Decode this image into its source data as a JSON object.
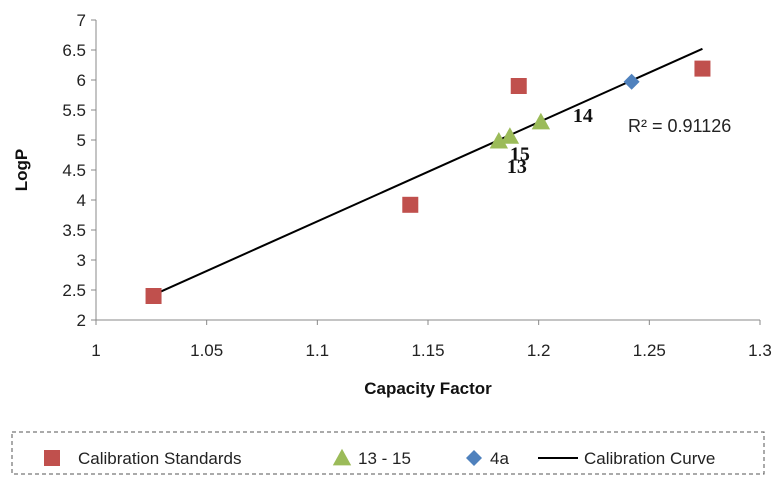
{
  "chart_data": {
    "type": "scatter",
    "title": "",
    "xlabel": "Capacity Factor",
    "ylabel": "LogP",
    "xlim": [
      1,
      1.3
    ],
    "ylim": [
      2,
      7
    ],
    "x_ticks": [
      "1",
      "1.05",
      "1.1",
      "1.15",
      "1.2",
      "1.25",
      "1.3"
    ],
    "y_ticks": [
      "2",
      "2.5",
      "3",
      "3.5",
      "4",
      "4.5",
      "5",
      "5.5",
      "6",
      "6.5",
      "7"
    ],
    "grid": false,
    "legend_position": "bottom",
    "series": [
      {
        "name": "Calibration Standards",
        "marker": "square",
        "color": "#c0504d",
        "points": [
          {
            "x": 1.026,
            "y": 2.4
          },
          {
            "x": 1.142,
            "y": 3.92
          },
          {
            "x": 1.191,
            "y": 5.9
          },
          {
            "x": 1.274,
            "y": 6.19
          }
        ]
      },
      {
        "name": "13 - 15",
        "marker": "triangle",
        "color": "#9bbb59",
        "points": [
          {
            "x": 1.182,
            "y": 4.98,
            "label": "13"
          },
          {
            "x": 1.187,
            "y": 5.06,
            "label": "15"
          },
          {
            "x": 1.201,
            "y": 5.3,
            "label": "14"
          }
        ]
      },
      {
        "name": "4a",
        "marker": "diamond",
        "color": "#4f81bd",
        "points": [
          {
            "x": 1.242,
            "y": 5.97
          }
        ]
      },
      {
        "name": "Calibration Curve",
        "marker": "line",
        "color": "#000000",
        "points": [
          {
            "x": 1.026,
            "y": 2.42
          },
          {
            "x": 1.274,
            "y": 6.52
          }
        ]
      }
    ],
    "annotations": [
      {
        "text": "R² = 0.91126"
      }
    ]
  }
}
